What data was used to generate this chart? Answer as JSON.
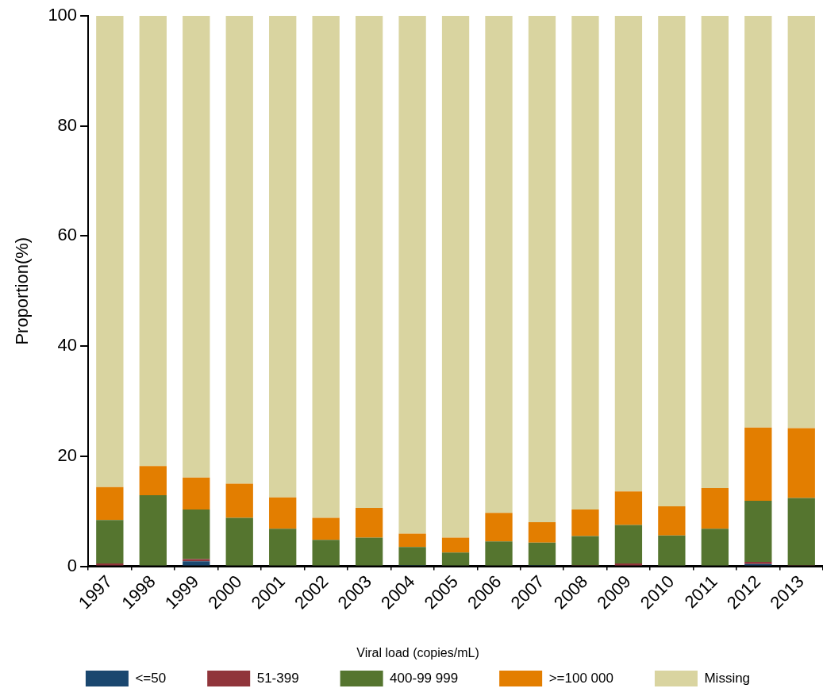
{
  "chart_data": {
    "type": "bar",
    "stacked": true,
    "categories": [
      "1997",
      "1998",
      "1999",
      "2000",
      "2001",
      "2002",
      "2003",
      "2004",
      "2005",
      "2006",
      "2007",
      "2008",
      "2009",
      "2010",
      "2011",
      "2012",
      "2013"
    ],
    "series": [
      {
        "name": "<=50",
        "color": "#1a476f",
        "values": [
          0,
          0,
          0.9,
          0,
          0,
          0,
          0,
          0.2,
          0,
          0,
          0.2,
          0,
          0,
          0,
          0,
          0.4,
          0
        ]
      },
      {
        "name": "51-399",
        "color": "#90353b",
        "values": [
          0.5,
          0,
          0.4,
          0,
          0,
          0,
          0,
          0,
          0,
          0,
          0,
          0.2,
          0.5,
          0,
          0,
          0.4,
          0.2
        ]
      },
      {
        "name": "400-99 999",
        "color": "#55752f",
        "values": [
          7.9,
          12.9,
          9.0,
          8.8,
          6.8,
          4.8,
          5.2,
          3.3,
          2.5,
          4.5,
          4.1,
          5.3,
          7.0,
          5.6,
          6.8,
          11.1,
          12.2
        ]
      },
      {
        "name": ">=100 000",
        "color": "#e37e00",
        "values": [
          6.0,
          5.3,
          5.8,
          6.2,
          5.7,
          4.0,
          5.4,
          2.4,
          2.7,
          5.2,
          3.7,
          4.8,
          6.1,
          5.3,
          7.4,
          13.3,
          12.7
        ]
      },
      {
        "name": "Missing",
        "color": "#d9d4a0",
        "values": [
          85.6,
          81.8,
          83.9,
          85.0,
          87.5,
          91.2,
          89.4,
          94.1,
          94.8,
          90.3,
          92.0,
          89.7,
          86.4,
          89.1,
          85.8,
          74.8,
          74.9
        ]
      }
    ],
    "ylabel": "Proportion(%)",
    "legend_title": "Viral load (copies/mL)",
    "legend": "bottom",
    "ylim": [
      0,
      100
    ],
    "yticks": [
      0,
      20,
      40,
      60,
      80,
      100
    ],
    "grid": false
  }
}
